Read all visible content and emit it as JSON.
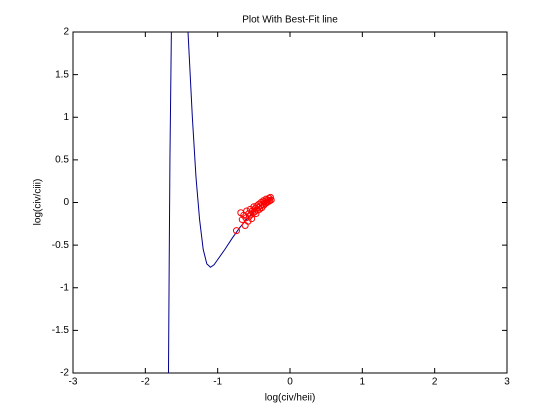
{
  "chart_data": {
    "type": "scatter",
    "title": "Plot With Best-Fit line",
    "x_label": "log(civ/heii)",
    "y_label": "log(civ/ciii)",
    "xlim": [
      -3,
      3
    ],
    "xticks": [
      -3,
      -2,
      -1,
      0,
      1,
      2,
      3
    ],
    "ylim": [
      -2,
      2
    ],
    "yticks": [
      -2,
      -1.5,
      -1,
      -0.5,
      0,
      0.5,
      1,
      1.5,
      2
    ],
    "grid": false,
    "scatter": {
      "color": "#ff0000",
      "x": [
        -0.74,
        -0.68,
        -0.66,
        -0.64,
        -0.62,
        -0.61,
        -0.6,
        -0.58,
        -0.57,
        -0.56,
        -0.55,
        -0.54,
        -0.53,
        -0.52,
        -0.51,
        -0.5,
        -0.49,
        -0.48,
        -0.47,
        -0.46,
        -0.45,
        -0.44,
        -0.43,
        -0.42,
        -0.41,
        -0.4,
        -0.39,
        -0.38,
        -0.37,
        -0.36,
        -0.35,
        -0.34,
        -0.33,
        -0.32,
        -0.31,
        -0.3,
        -0.29,
        -0.28,
        -0.27,
        -0.26
      ],
      "y": [
        -0.33,
        -0.12,
        -0.2,
        -0.15,
        -0.27,
        -0.18,
        -0.1,
        -0.22,
        -0.13,
        -0.16,
        -0.08,
        -0.14,
        -0.19,
        -0.1,
        -0.12,
        -0.05,
        -0.11,
        -0.07,
        -0.13,
        -0.04,
        -0.09,
        -0.06,
        -0.02,
        -0.08,
        -0.04,
        0.0,
        -0.06,
        -0.02,
        0.02,
        -0.03,
        0.01,
        -0.01,
        0.04,
        0.0,
        0.03,
        0.01,
        0.05,
        0.02,
        0.06,
        0.03
      ]
    },
    "fit_line": {
      "color": "#00008b",
      "x": [
        -1.68,
        -1.67,
        -1.66,
        -1.64,
        null,
        -1.41,
        -1.35,
        -1.3,
        -1.25,
        -1.2,
        -1.15,
        -1.1,
        -1.05,
        -1.0,
        -0.9,
        -0.8,
        -0.7,
        -0.6,
        -0.5,
        -0.4,
        -0.3,
        -0.25
      ],
      "y": [
        -2,
        -0.7,
        0.5,
        2,
        null,
        2,
        1.0,
        0.3,
        -0.2,
        -0.55,
        -0.72,
        -0.76,
        -0.73,
        -0.67,
        -0.55,
        -0.42,
        -0.3,
        -0.2,
        -0.1,
        -0.03,
        0.03,
        0.05
      ]
    }
  }
}
